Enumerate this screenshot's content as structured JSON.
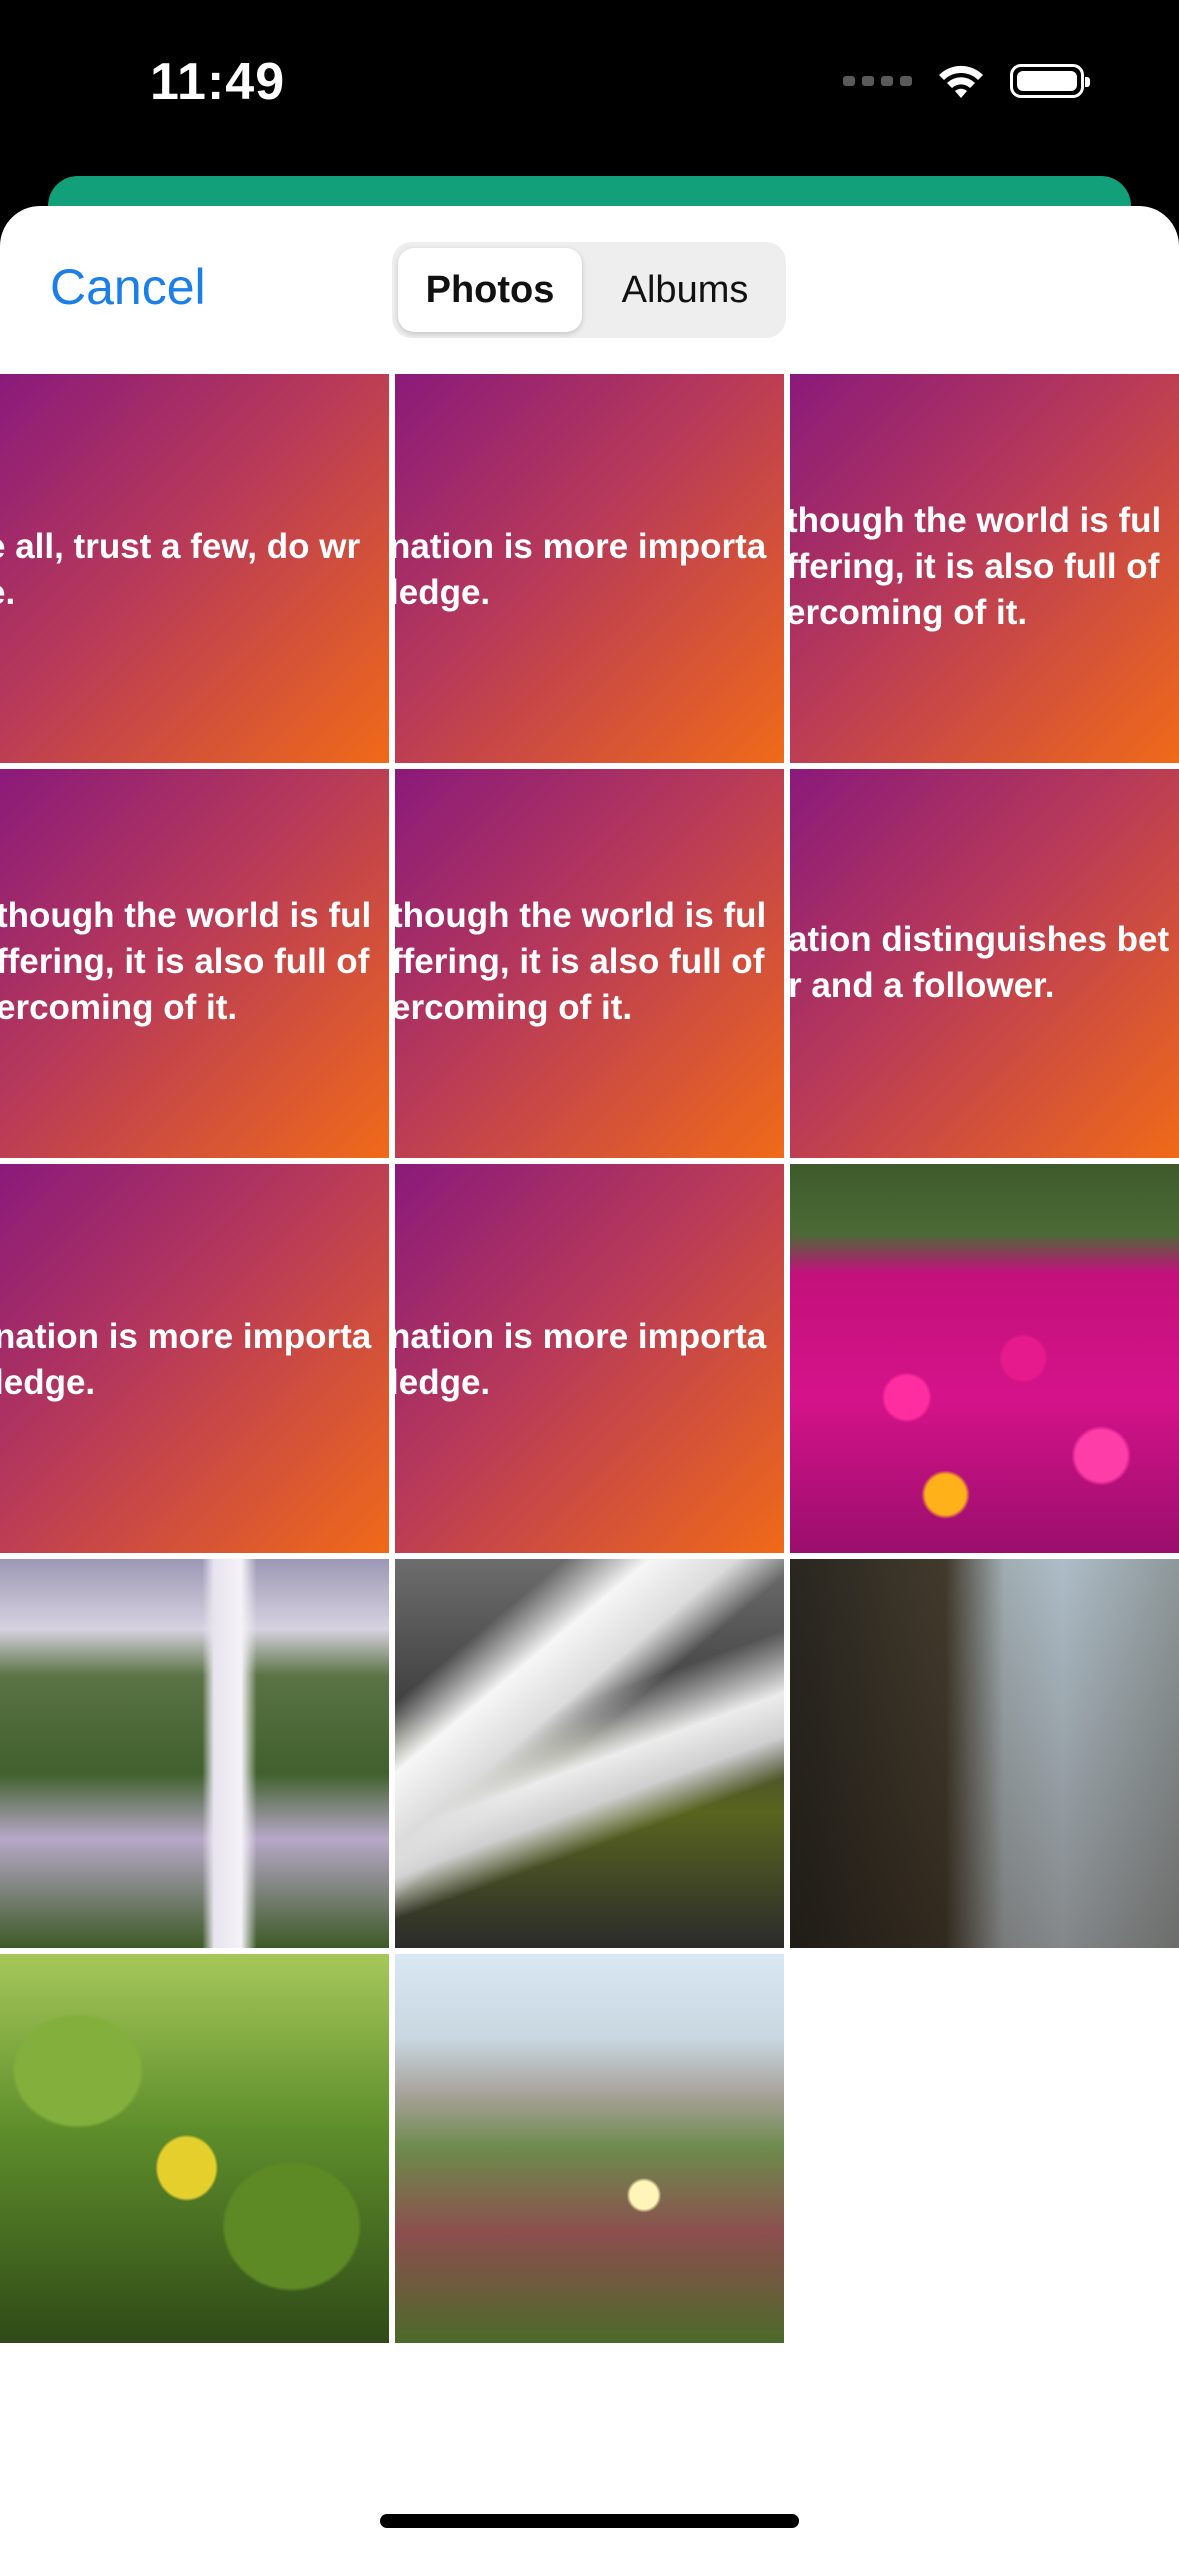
{
  "status_bar": {
    "time": "11:49",
    "icons": [
      "signal-dots-icon",
      "wifi-icon",
      "battery-icon"
    ]
  },
  "header": {
    "cancel_label": "Cancel",
    "tabs": [
      {
        "label": "Photos",
        "selected": true
      },
      {
        "label": "Albums",
        "selected": false
      }
    ]
  },
  "colors": {
    "accent": "#1a7fe8",
    "green_bar": "#12a07a",
    "quote_gradient_start": "#8a1a7b",
    "quote_gradient_end": "#f06a18"
  },
  "grid": {
    "quotes": [
      "e all, trust a few, do wr\ne.",
      "nation is more importa\nledge.",
      "though the world is ful\nffering, it is also full of\nercoming of it.",
      "though the world is ful\nffering, it is also full of\nercoming of it.",
      "though the world is ful\nffering, it is also full of\nercoming of it.",
      "ation distinguishes bet\nr and a follower.",
      "nation is more importa\nledge.",
      "nation is more importa\nledge."
    ],
    "photos": [
      "flowers-photo",
      "waterfall-photo",
      "waterfall-rocks-photo",
      "waterfall-coast-photo",
      "leaves-photo",
      "grass-flower-photo"
    ]
  }
}
